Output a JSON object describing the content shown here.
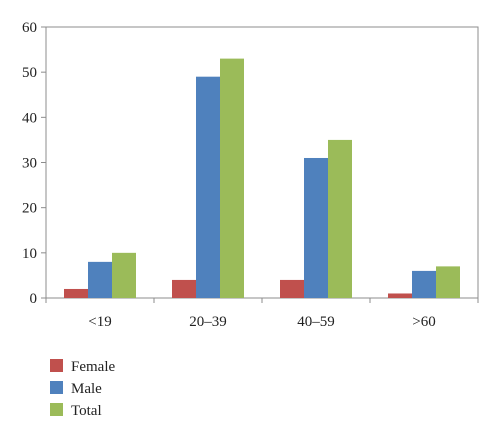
{
  "chart_data": {
    "type": "bar",
    "title": "",
    "xlabel": "",
    "ylabel": "",
    "categories": [
      "<19",
      "20–39",
      "40–59",
      ">60"
    ],
    "series": [
      {
        "name": "Female",
        "color": "#c0504d",
        "values": [
          2,
          4,
          4,
          1
        ]
      },
      {
        "name": "Male",
        "color": "#4f81bd",
        "values": [
          8,
          49,
          31,
          6
        ]
      },
      {
        "name": "Total",
        "color": "#9bbb59",
        "values": [
          10,
          53,
          35,
          7
        ]
      }
    ],
    "ylim": [
      0,
      60
    ],
    "yticks": [
      0,
      10,
      20,
      30,
      40,
      50,
      60
    ],
    "grid": false,
    "legend_position": "bottom-left"
  }
}
